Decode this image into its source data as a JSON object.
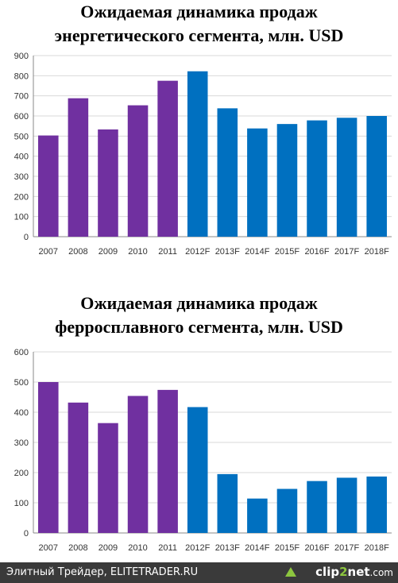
{
  "chart_data": [
    {
      "type": "bar",
      "title_lines": [
        "Ожидаемая динамика продаж",
        "энергетического сегмента, млн. USD"
      ],
      "categories": [
        "2007",
        "2008",
        "2009",
        "2010",
        "2011",
        "2012F",
        "2013F",
        "2014F",
        "2015F",
        "2016F",
        "2017F",
        "2018F"
      ],
      "values": [
        503,
        688,
        533,
        653,
        775,
        822,
        638,
        538,
        560,
        578,
        591,
        600
      ],
      "ylim": [
        0,
        900
      ],
      "yticks": [
        0,
        100,
        200,
        300,
        400,
        500,
        600,
        700,
        800,
        900
      ],
      "grid": true,
      "colors": {
        "actual": "#7030a0",
        "forecast": "#0070c0"
      },
      "forecast_from_index": 5
    },
    {
      "type": "bar",
      "title_lines": [
        "Ожидаемая динамика продаж",
        "ферросплавного сегмента, млн. USD"
      ],
      "categories": [
        "2007",
        "2008",
        "2009",
        "2010",
        "2011",
        "2012F",
        "2013F",
        "2014F",
        "2015F",
        "2016F",
        "2017F",
        "2018F"
      ],
      "values": [
        500,
        432,
        364,
        454,
        474,
        417,
        195,
        114,
        146,
        172,
        183,
        187
      ],
      "ylim": [
        0,
        600
      ],
      "yticks": [
        0,
        100,
        200,
        300,
        400,
        500,
        600
      ],
      "grid": true,
      "colors": {
        "actual": "#7030a0",
        "forecast": "#0070c0"
      },
      "forecast_from_index": 5
    }
  ],
  "footer": {
    "credit": "Элитный Трейдер, ELITETRADER.RU",
    "brand_prefix": "clip",
    "brand_accent": "2",
    "brand_suffix": "net",
    "brand_tld": ".com",
    "icon": "upload-arrow-icon"
  }
}
